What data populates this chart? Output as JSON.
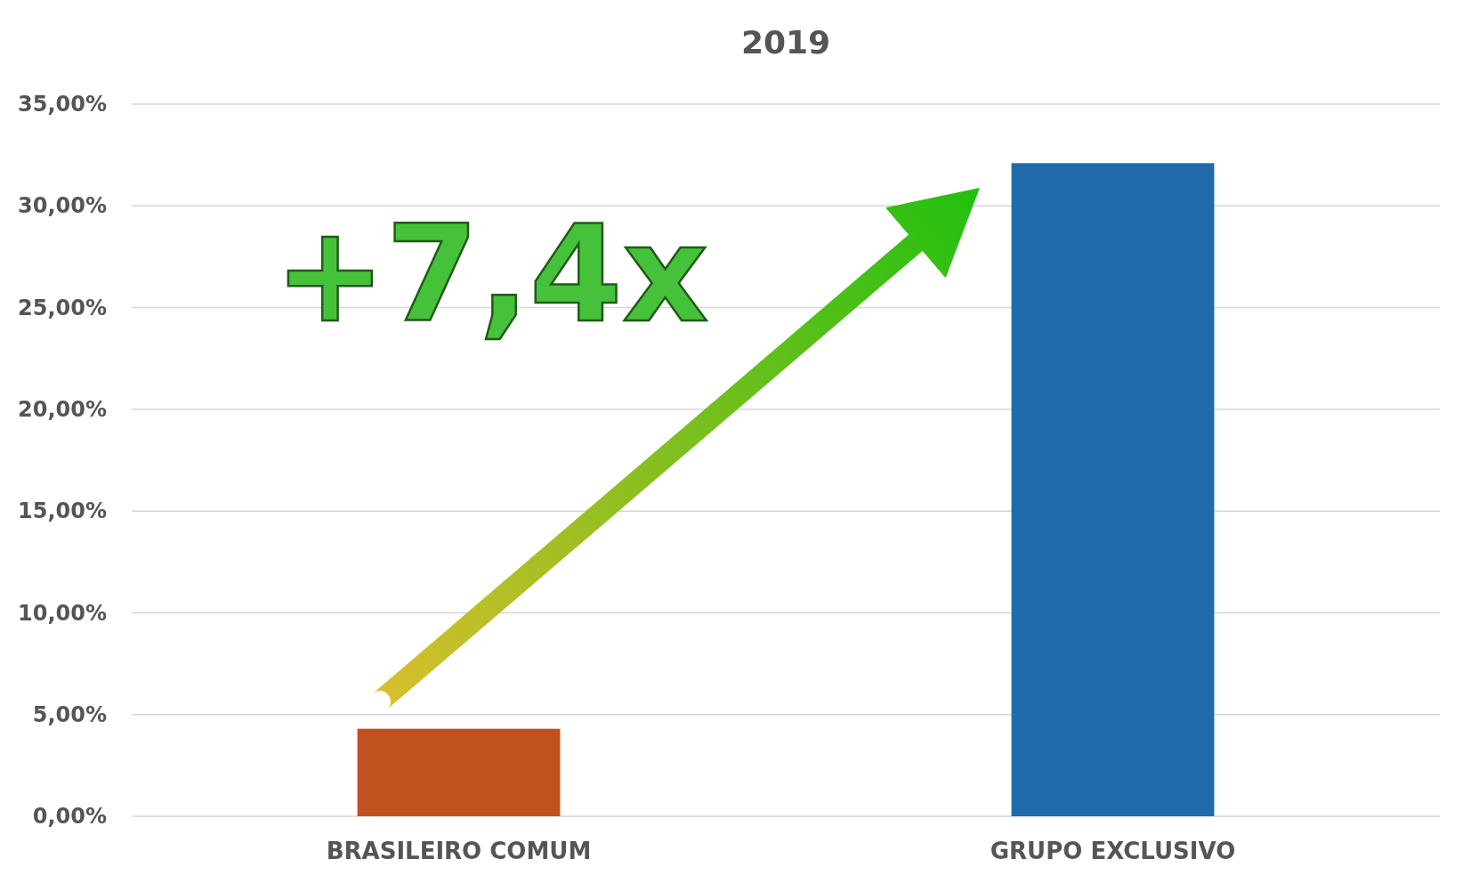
{
  "chart_data": {
    "type": "bar",
    "title": "2019",
    "categories": [
      "BRASILEIRO COMUM",
      "GRUPO EXCLUSIVO"
    ],
    "values": [
      4.3,
      32.1
    ],
    "colors": [
      "#c25120",
      "#206aab"
    ],
    "ylim": [
      0,
      35
    ],
    "yticks": [
      {
        "value": 0,
        "label": "0,00%"
      },
      {
        "value": 5,
        "label": "5,00%"
      },
      {
        "value": 10,
        "label": "10,00%"
      },
      {
        "value": 15,
        "label": "15,00%"
      },
      {
        "value": 20,
        "label": "20,00%"
      },
      {
        "value": 25,
        "label": "25,00%"
      },
      {
        "value": 30,
        "label": "30,00%"
      },
      {
        "value": 35,
        "label": "35,00%"
      }
    ],
    "grid": "y",
    "annotations": [
      "+7,4x"
    ]
  }
}
